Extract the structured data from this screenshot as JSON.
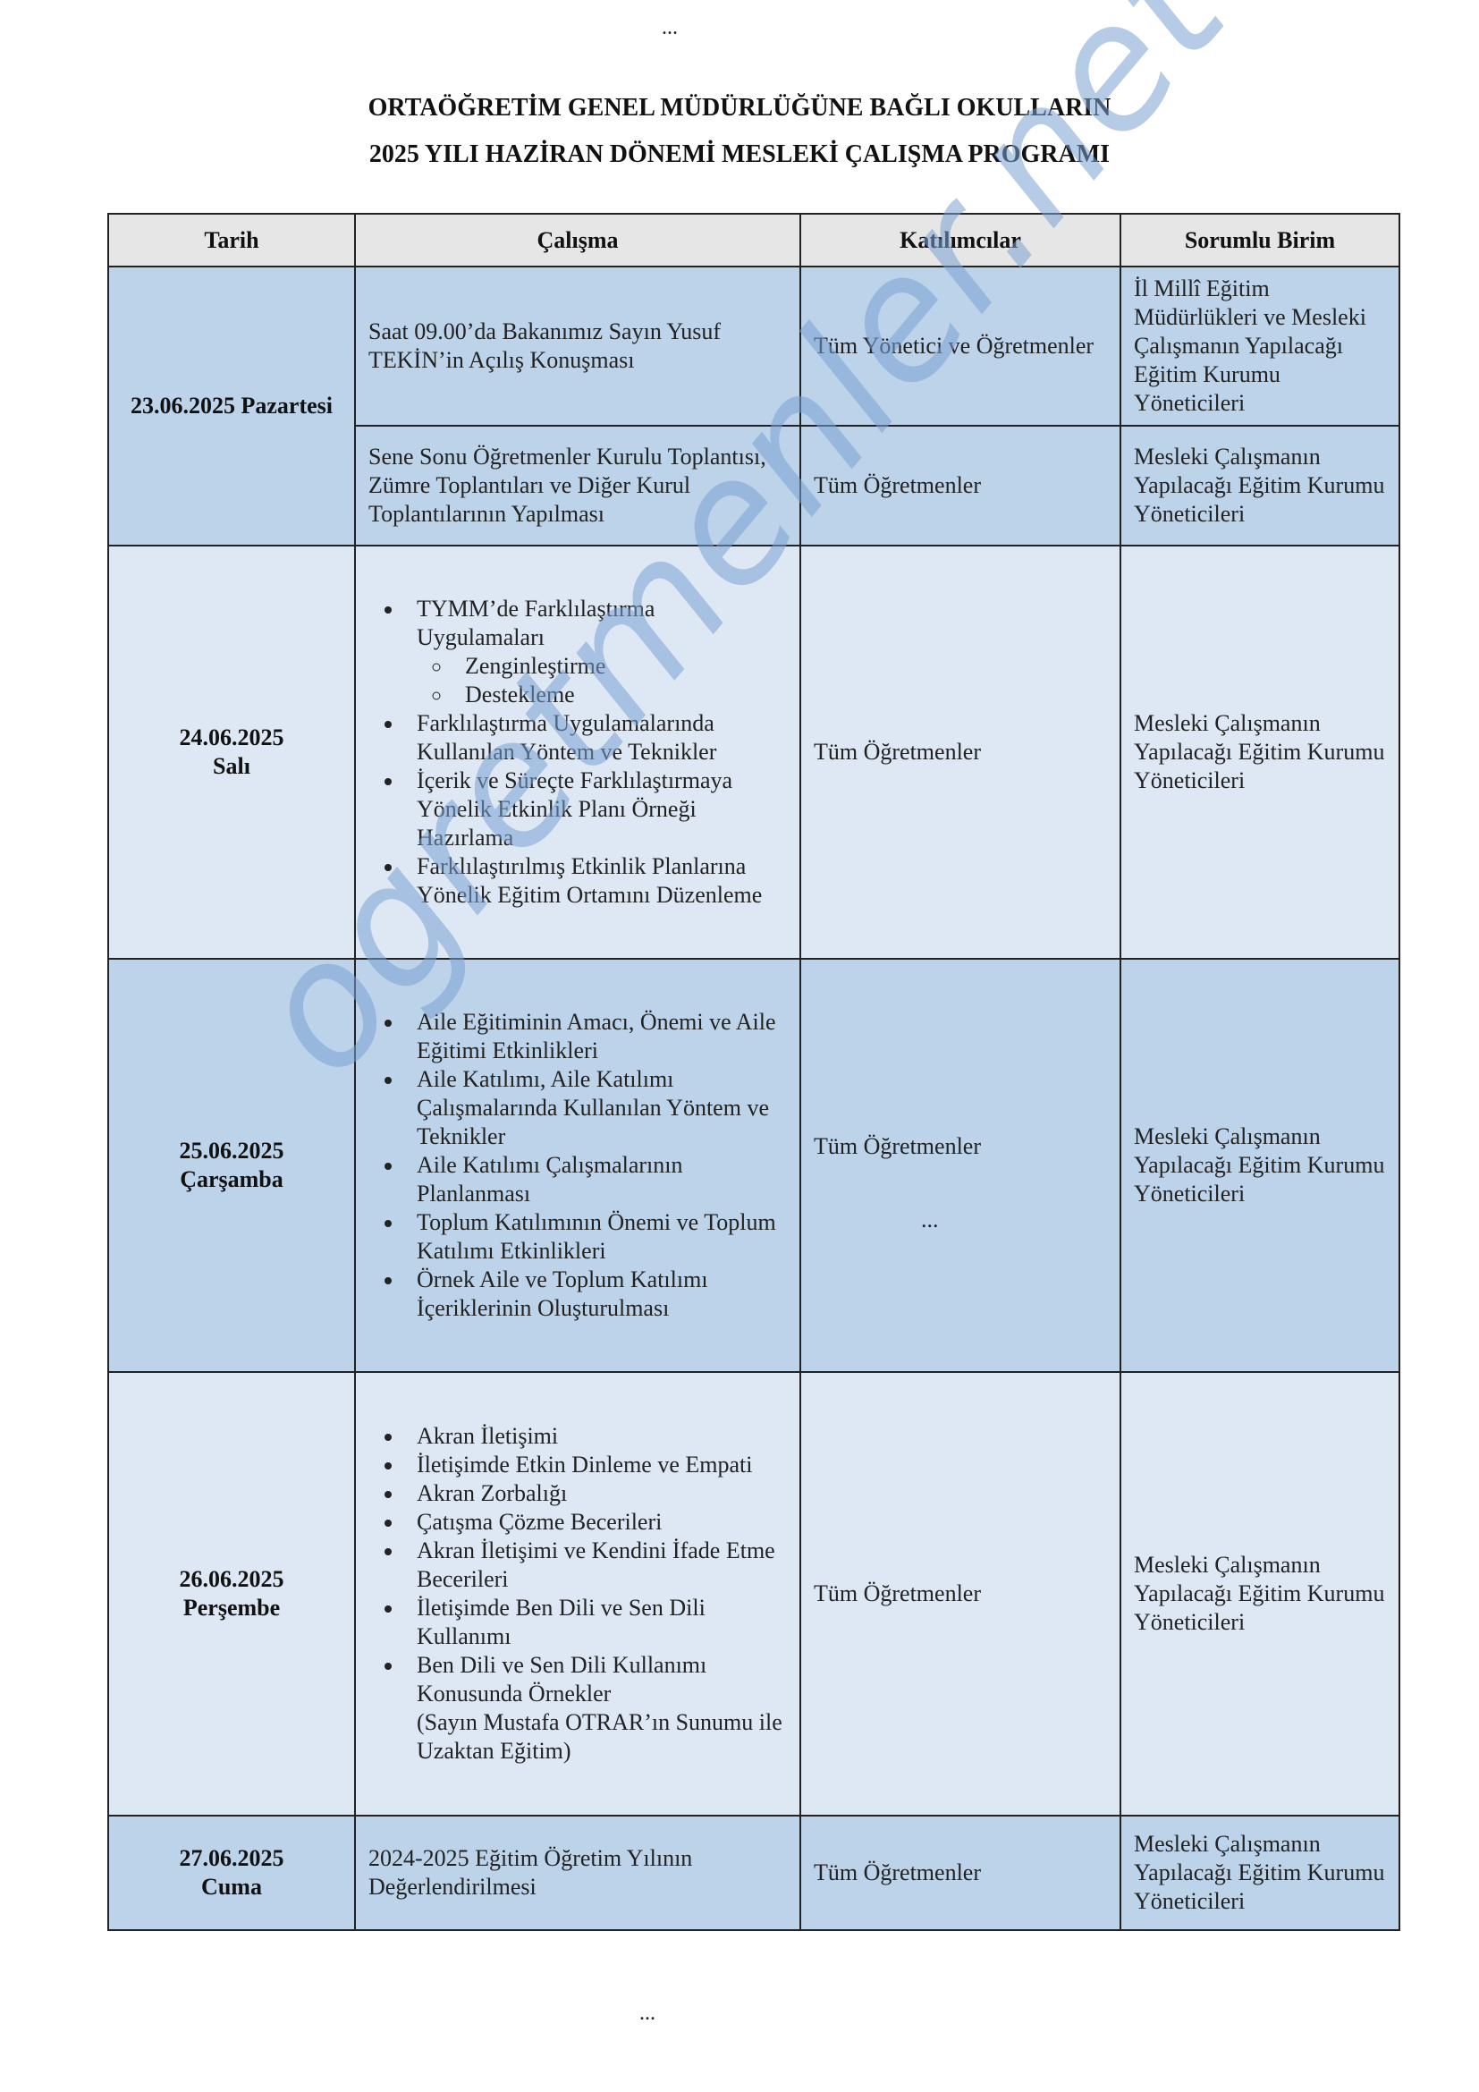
{
  "page": {
    "top_ellipsis": "...",
    "bottom_ellipsis": "..."
  },
  "title": {
    "line1": "ORTAÖĞRETİM GENEL MÜDÜRLÜĞÜNE BAĞLI OKULLARIN",
    "line2": "2025 YILI HAZİRAN DÖNEMİ MESLEKİ ÇALIŞMA PROGRAMI"
  },
  "table": {
    "headers": [
      "Tarih",
      "Çalışma",
      "Katılımcılar",
      "Sorumlu Birim"
    ],
    "day1": {
      "date": "23.06.2025 Pazartesi",
      "rows": [
        {
          "work": "Saat 09.00’da Bakanımız Sayın Yusuf TEKİN’in Açılış Konuşması",
          "participants": "Tüm Yönetici ve Öğretmenler",
          "responsible": "İl Millî Eğitim Müdürlükleri ve Mesleki Çalışmanın Yapılacağı Eğitim Kurumu Yöneticileri"
        },
        {
          "work": "Sene Sonu Öğretmenler Kurulu Toplantısı, Zümre Toplantıları ve Diğer Kurul Toplantılarının Yapılması",
          "participants": "Tüm Öğretmenler",
          "responsible": "Mesleki Çalışmanın Yapılacağı Eğitim Kurumu Yöneticileri"
        }
      ]
    },
    "day2": {
      "date_line1": "24.06.2025",
      "date_line2": "Salı",
      "items": [
        "TYMM’de Farklılaştırma Uygulamaları",
        "Farklılaştırma Uygulamalarında Kullanılan Yöntem ve Teknikler",
        "İçerik ve Süreçte Farklılaştırmaya Yönelik Etkinlik Planı Örneği Hazırlama",
        "Farklılaştırılmış Etkinlik Planlarına Yönelik Eğitim Ortamını Düzenleme"
      ],
      "subitems": [
        "Zenginleştirme",
        "Destekleme"
      ],
      "participants": "Tüm Öğretmenler",
      "responsible": "Mesleki Çalışmanın Yapılacağı Eğitim Kurumu Yöneticileri"
    },
    "day3": {
      "date_line1": "25.06.2025",
      "date_line2": "Çarşamba",
      "items": [
        "Aile Eğitiminin Amacı, Önemi ve Aile Eğitimi Etkinlikleri",
        "Aile Katılımı, Aile Katılımı Çalışmalarında Kullanılan Yöntem ve Teknikler",
        "Aile Katılımı Çalışmalarının Planlanması",
        "Toplum Katılımının Önemi ve Toplum Katılımı Etkinlikleri",
        "Örnek Aile ve Toplum Katılımı İçeriklerinin Oluşturulması"
      ],
      "participants": "Tüm Öğretmenler",
      "participants_ellipsis": "...",
      "responsible": "Mesleki Çalışmanın Yapılacağı Eğitim Kurumu Yöneticileri"
    },
    "day4": {
      "date_line1": "26.06.2025",
      "date_line2": "Perşembe",
      "items": [
        "Akran İletişimi",
        "İletişimde Etkin Dinleme ve Empati",
        "Akran Zorbalığı",
        "Çatışma Çözme Becerileri",
        "Akran İletişimi ve Kendini İfade Etme Becerileri",
        "İletişimde Ben Dili ve Sen Dili Kullanımı",
        "Ben Dili ve Sen Dili Kullanımı Konusunda Örnekler"
      ],
      "note": "(Sayın Mustafa OTRAR’ın Sunumu ile Uzaktan Eğitim)",
      "participants": "Tüm Öğretmenler",
      "responsible": "Mesleki Çalışmanın Yapılacağı Eğitim Kurumu Yöneticileri"
    },
    "day5": {
      "date_line1": "27.06.2025",
      "date_line2": "Cuma",
      "work": "2024-2025 Eğitim Öğretim Yılının Değerlendirilmesi",
      "participants": "Tüm Öğretmenler",
      "responsible": "Mesleki Çalışmanın Yapılacağı Eğitim Kurumu Yöneticileri"
    }
  },
  "watermark": {
    "text": "ogretmenler.net",
    "color": "#78a0d2"
  },
  "colors": {
    "row_dark": "#bcd3ea",
    "row_light": "#dde8f4",
    "header_bg": "#e6e6e6"
  }
}
